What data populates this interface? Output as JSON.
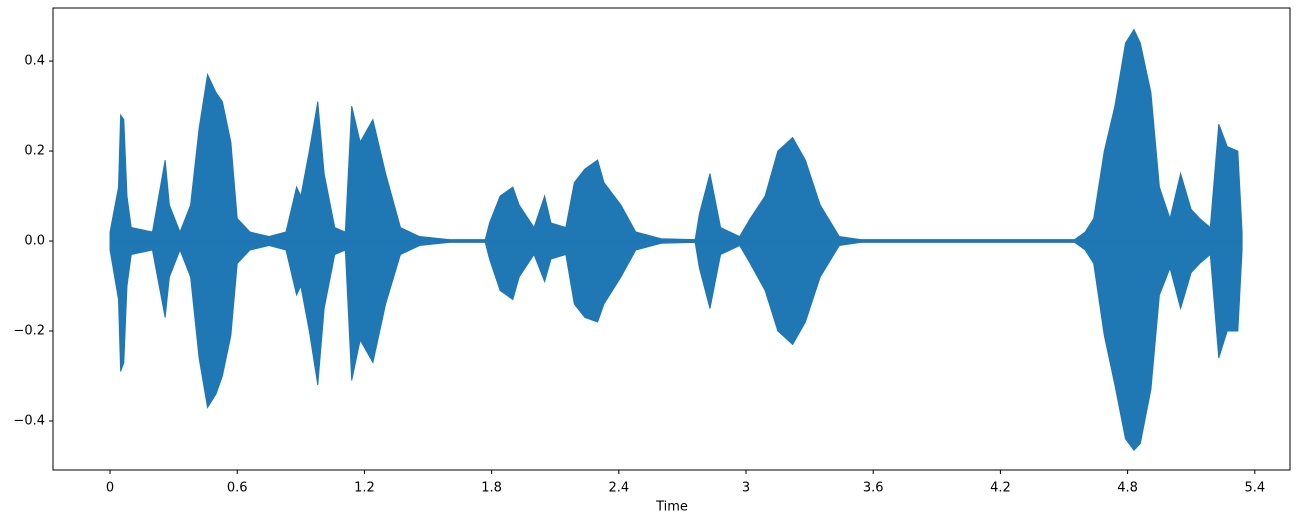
{
  "chart_data": {
    "type": "waveform",
    "x_label": "Time",
    "x": [
      0,
      0.04,
      0.05,
      0.065,
      0.08,
      0.1,
      0.2,
      0.26,
      0.28,
      0.33,
      0.38,
      0.42,
      0.46,
      0.5,
      0.53,
      0.57,
      0.6,
      0.66,
      0.75,
      0.83,
      0.88,
      0.9,
      0.94,
      0.98,
      1.01,
      1.06,
      1.11,
      1.14,
      1.18,
      1.24,
      1.3,
      1.37,
      1.46,
      1.6,
      1.77,
      1.79,
      1.84,
      1.9,
      1.93,
      2.0,
      2.05,
      2.08,
      2.15,
      2.19,
      2.24,
      2.3,
      2.33,
      2.41,
      2.48,
      2.6,
      2.76,
      2.78,
      2.83,
      2.88,
      2.97,
      3.02,
      3.09,
      3.15,
      3.22,
      3.28,
      3.35,
      3.44,
      3.54,
      4.55,
      4.6,
      4.64,
      4.69,
      4.74,
      4.79,
      4.83,
      4.86,
      4.91,
      4.95,
      5.0,
      5.05,
      5.1,
      5.14,
      5.19,
      5.23,
      5.27,
      5.32,
      5.34
    ],
    "series": [
      {
        "color": "#1f77b4",
        "values": [
          0.02,
          0.12,
          0.28,
          0.27,
          0.1,
          0.03,
          0.02,
          0.18,
          0.08,
          0.02,
          0.08,
          0.25,
          0.37,
          0.33,
          0.31,
          0.22,
          0.05,
          0.02,
          0.01,
          0.02,
          0.12,
          0.1,
          0.2,
          0.31,
          0.15,
          0.03,
          0.02,
          0.3,
          0.22,
          0.27,
          0.15,
          0.03,
          0.01,
          0.003,
          0.003,
          0.04,
          0.1,
          0.12,
          0.08,
          0.03,
          0.1,
          0.04,
          0.03,
          0.13,
          0.16,
          0.18,
          0.13,
          0.08,
          0.02,
          0.005,
          0.003,
          0.06,
          0.15,
          0.03,
          0.01,
          0.05,
          0.1,
          0.2,
          0.23,
          0.18,
          0.08,
          0.01,
          0.003,
          0.003,
          0.02,
          0.05,
          0.2,
          0.3,
          0.44,
          0.47,
          0.44,
          0.33,
          0.12,
          0.05,
          0.15,
          0.07,
          0.05,
          0.03,
          0.26,
          0.21,
          0.2,
          0.02
        ]
      },
      {
        "color": "#1f77b4",
        "values": [
          -0.02,
          -0.13,
          -0.29,
          -0.27,
          -0.1,
          -0.03,
          -0.02,
          -0.17,
          -0.08,
          -0.02,
          -0.08,
          -0.26,
          -0.37,
          -0.34,
          -0.3,
          -0.21,
          -0.05,
          -0.02,
          -0.01,
          -0.02,
          -0.12,
          -0.1,
          -0.2,
          -0.32,
          -0.15,
          -0.03,
          -0.02,
          -0.31,
          -0.22,
          -0.27,
          -0.14,
          -0.03,
          -0.01,
          -0.003,
          -0.003,
          -0.04,
          -0.11,
          -0.13,
          -0.08,
          -0.03,
          -0.09,
          -0.04,
          -0.03,
          -0.14,
          -0.17,
          -0.18,
          -0.14,
          -0.08,
          -0.02,
          -0.005,
          -0.003,
          -0.06,
          -0.15,
          -0.03,
          -0.01,
          -0.05,
          -0.11,
          -0.2,
          -0.23,
          -0.18,
          -0.08,
          -0.01,
          -0.003,
          -0.003,
          -0.02,
          -0.05,
          -0.21,
          -0.32,
          -0.44,
          -0.465,
          -0.45,
          -0.33,
          -0.12,
          -0.06,
          -0.15,
          -0.07,
          -0.05,
          -0.03,
          -0.26,
          -0.2,
          -0.2,
          -0.02
        ]
      }
    ],
    "xlim": [
      -0.269,
      5.566
    ],
    "xticks": [
      0,
      0.6,
      1.2,
      1.8,
      2.4,
      3,
      3.6,
      4.2,
      4.8,
      5.4
    ],
    "ylim": [
      -0.509,
      0.518
    ],
    "yticks": [
      {
        "value": -0.4,
        "label": "−0.4"
      },
      {
        "value": -0.2,
        "label": "−0.2"
      },
      {
        "value": 0,
        "label": "0.0"
      },
      0.2,
      0.4
    ]
  }
}
